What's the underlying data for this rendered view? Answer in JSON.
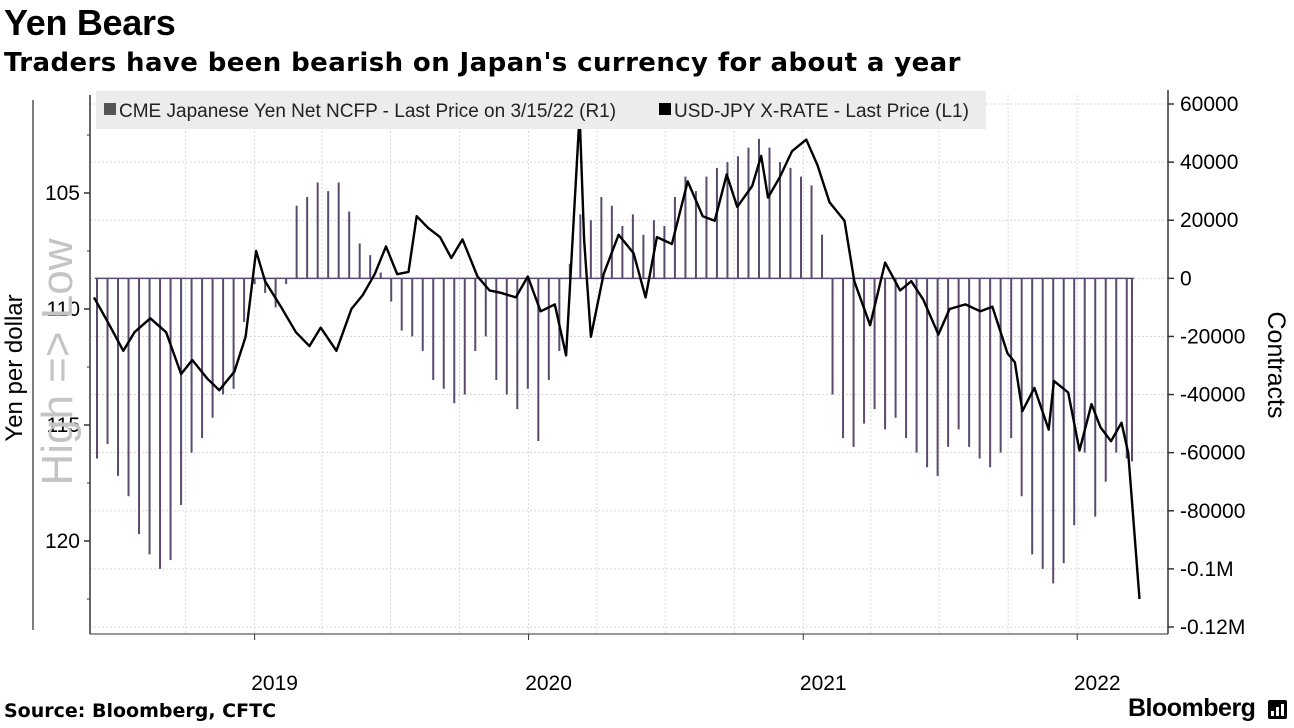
{
  "header": {
    "title": "Yen Bears",
    "subtitle": "Traders have been bearish on Japan's currency for about a year"
  },
  "footer": {
    "source": "Source: Bloomberg, CFTC",
    "brand": "Bloomberg"
  },
  "colors": {
    "line": "#000000",
    "bars": "#5b4a6e",
    "grid": "#d9d9d9",
    "legend_bg": "#ececec",
    "legend_swatch_bars": "#555555"
  },
  "chart_data": {
    "type": "bar+line",
    "title": "Yen Bears",
    "subtitle": "Traders have been bearish on Japan's currency for about a year",
    "legend": [
      {
        "name": "CME Japanese Yen Net NCFP - Last Price on 3/15/22 (R1)",
        "axis": "right"
      },
      {
        "name": "USD-JPY X-RATE - Last Price (L1)",
        "axis": "left"
      }
    ],
    "legend_position": "top",
    "left_axis": {
      "label": "Yen per dollar",
      "annotation": "High => Low",
      "ticks": [
        105,
        110,
        115,
        120
      ],
      "range": [
        101.5,
        123.5
      ],
      "inverted": true
    },
    "right_axis": {
      "label": "Contracts",
      "ticks": [
        60000,
        40000,
        20000,
        0,
        -20000,
        -40000,
        -60000,
        -80000,
        -100000,
        -120000
      ],
      "tick_labels": [
        "60000",
        "40000",
        "20000",
        "0",
        "-20000",
        "-40000",
        "-60000",
        "-80000",
        "-0.1M",
        "-0.12M"
      ],
      "range": [
        -120000,
        60000
      ]
    },
    "x_axis": {
      "range": [
        "2018-06-01",
        "2022-03-15"
      ],
      "tick_labels": [
        "2019",
        "2020",
        "2021",
        "2022"
      ],
      "ticks": [
        "2019-01-01",
        "2020-01-01",
        "2021-01-01",
        "2022-01-01"
      ]
    },
    "grid": true,
    "net_positions": [
      [
        "2018-06-05",
        -62000
      ],
      [
        "2018-06-19",
        -57000
      ],
      [
        "2018-07-03",
        -68000
      ],
      [
        "2018-07-17",
        -75000
      ],
      [
        "2018-07-31",
        -88000
      ],
      [
        "2018-08-14",
        -95000
      ],
      [
        "2018-08-28",
        -100000
      ],
      [
        "2018-09-11",
        -97000
      ],
      [
        "2018-09-25",
        -78000
      ],
      [
        "2018-10-09",
        -60000
      ],
      [
        "2018-10-23",
        -55000
      ],
      [
        "2018-11-06",
        -48000
      ],
      [
        "2018-11-20",
        -40000
      ],
      [
        "2018-12-04",
        -38000
      ],
      [
        "2018-12-18",
        -15000
      ],
      [
        "2019-01-01",
        -2000
      ],
      [
        "2019-01-15",
        -5000
      ],
      [
        "2019-01-29",
        -10000
      ],
      [
        "2019-02-12",
        -2000
      ],
      [
        "2019-02-26",
        25000
      ],
      [
        "2019-03-12",
        28000
      ],
      [
        "2019-03-26",
        33000
      ],
      [
        "2019-04-09",
        30000
      ],
      [
        "2019-04-23",
        33000
      ],
      [
        "2019-05-07",
        23000
      ],
      [
        "2019-05-21",
        12000
      ],
      [
        "2019-06-04",
        8000
      ],
      [
        "2019-06-18",
        2000
      ],
      [
        "2019-07-02",
        -8000
      ],
      [
        "2019-07-16",
        -18000
      ],
      [
        "2019-07-30",
        -20000
      ],
      [
        "2019-08-13",
        -25000
      ],
      [
        "2019-08-27",
        -35000
      ],
      [
        "2019-09-10",
        -38000
      ],
      [
        "2019-09-24",
        -43000
      ],
      [
        "2019-10-08",
        -40000
      ],
      [
        "2019-10-22",
        -25000
      ],
      [
        "2019-11-05",
        -20000
      ],
      [
        "2019-11-19",
        -35000
      ],
      [
        "2019-12-03",
        -40000
      ],
      [
        "2019-12-17",
        -45000
      ],
      [
        "2019-12-31",
        -38000
      ],
      [
        "2020-01-14",
        -56000
      ],
      [
        "2020-01-28",
        -35000
      ],
      [
        "2020-02-11",
        -25000
      ],
      [
        "2020-02-25",
        5000
      ],
      [
        "2020-03-10",
        22000
      ],
      [
        "2020-03-24",
        20000
      ],
      [
        "2020-04-07",
        28000
      ],
      [
        "2020-04-21",
        25000
      ],
      [
        "2020-05-05",
        18000
      ],
      [
        "2020-05-19",
        22000
      ],
      [
        "2020-06-02",
        15000
      ],
      [
        "2020-06-16",
        20000
      ],
      [
        "2020-06-30",
        18000
      ],
      [
        "2020-07-14",
        28000
      ],
      [
        "2020-07-28",
        35000
      ],
      [
        "2020-08-11",
        30000
      ],
      [
        "2020-08-25",
        35000
      ],
      [
        "2020-09-08",
        38000
      ],
      [
        "2020-09-22",
        40000
      ],
      [
        "2020-10-06",
        42000
      ],
      [
        "2020-10-20",
        45000
      ],
      [
        "2020-11-03",
        48000
      ],
      [
        "2020-11-17",
        45000
      ],
      [
        "2020-12-01",
        40000
      ],
      [
        "2020-12-15",
        38000
      ],
      [
        "2020-12-29",
        35000
      ],
      [
        "2021-01-12",
        32000
      ],
      [
        "2021-01-26",
        15000
      ],
      [
        "2021-02-09",
        -40000
      ],
      [
        "2021-02-23",
        -55000
      ],
      [
        "2021-03-09",
        -58000
      ],
      [
        "2021-03-23",
        -50000
      ],
      [
        "2021-04-06",
        -45000
      ],
      [
        "2021-04-20",
        -52000
      ],
      [
        "2021-05-04",
        -48000
      ],
      [
        "2021-05-18",
        -55000
      ],
      [
        "2021-06-01",
        -60000
      ],
      [
        "2021-06-15",
        -65000
      ],
      [
        "2021-06-29",
        -68000
      ],
      [
        "2021-07-13",
        -58000
      ],
      [
        "2021-07-27",
        -52000
      ],
      [
        "2021-08-10",
        -58000
      ],
      [
        "2021-08-24",
        -62000
      ],
      [
        "2021-09-07",
        -65000
      ],
      [
        "2021-09-21",
        -60000
      ],
      [
        "2021-10-05",
        -55000
      ],
      [
        "2021-10-19",
        -75000
      ],
      [
        "2021-11-02",
        -95000
      ],
      [
        "2021-11-16",
        -100000
      ],
      [
        "2021-11-30",
        -105000
      ],
      [
        "2021-12-14",
        -98000
      ],
      [
        "2021-12-28",
        -85000
      ],
      [
        "2022-01-11",
        -60000
      ],
      [
        "2022-01-25",
        -82000
      ],
      [
        "2022-02-08",
        -70000
      ],
      [
        "2022-02-22",
        -60000
      ],
      [
        "2022-03-08",
        -62000
      ],
      [
        "2022-03-15",
        -63000
      ]
    ],
    "usd_jpy": [
      [
        "2018-06-01",
        109.5
      ],
      [
        "2018-06-20",
        110.6
      ],
      [
        "2018-07-10",
        111.8
      ],
      [
        "2018-07-25",
        111.0
      ],
      [
        "2018-08-15",
        110.4
      ],
      [
        "2018-09-05",
        111.0
      ],
      [
        "2018-09-25",
        112.8
      ],
      [
        "2018-10-10",
        112.2
      ],
      [
        "2018-10-30",
        113.0
      ],
      [
        "2018-11-15",
        113.5
      ],
      [
        "2018-12-05",
        112.7
      ],
      [
        "2018-12-20",
        111.2
      ],
      [
        "2019-01-03",
        107.5
      ],
      [
        "2019-01-15",
        108.8
      ],
      [
        "2019-02-05",
        109.9
      ],
      [
        "2019-02-25",
        111.0
      ],
      [
        "2019-03-15",
        111.6
      ],
      [
        "2019-03-30",
        110.8
      ],
      [
        "2019-04-20",
        111.8
      ],
      [
        "2019-05-10",
        110.0
      ],
      [
        "2019-05-25",
        109.4
      ],
      [
        "2019-06-10",
        108.5
      ],
      [
        "2019-06-25",
        107.3
      ],
      [
        "2019-07-10",
        108.5
      ],
      [
        "2019-07-25",
        108.4
      ],
      [
        "2019-08-05",
        106.0
      ],
      [
        "2019-08-20",
        106.5
      ],
      [
        "2019-09-05",
        106.9
      ],
      [
        "2019-09-20",
        107.8
      ],
      [
        "2019-10-05",
        107.0
      ],
      [
        "2019-10-25",
        108.6
      ],
      [
        "2019-11-10",
        109.2
      ],
      [
        "2019-11-25",
        109.3
      ],
      [
        "2019-12-15",
        109.5
      ],
      [
        "2019-12-31",
        108.6
      ],
      [
        "2020-01-17",
        110.1
      ],
      [
        "2020-02-05",
        109.8
      ],
      [
        "2020-02-20",
        112.0
      ],
      [
        "2020-03-09",
        101.6
      ],
      [
        "2020-03-15",
        107.0
      ],
      [
        "2020-03-24",
        111.2
      ],
      [
        "2020-04-10",
        108.5
      ],
      [
        "2020-04-30",
        106.8
      ],
      [
        "2020-05-20",
        107.6
      ],
      [
        "2020-06-05",
        109.5
      ],
      [
        "2020-06-20",
        106.9
      ],
      [
        "2020-07-10",
        107.2
      ],
      [
        "2020-07-31",
        104.5
      ],
      [
        "2020-08-20",
        106.0
      ],
      [
        "2020-09-05",
        106.2
      ],
      [
        "2020-09-21",
        104.2
      ],
      [
        "2020-10-05",
        105.6
      ],
      [
        "2020-10-25",
        104.7
      ],
      [
        "2020-11-06",
        103.4
      ],
      [
        "2020-11-15",
        105.2
      ],
      [
        "2020-12-01",
        104.3
      ],
      [
        "2020-12-17",
        103.2
      ],
      [
        "2021-01-05",
        102.7
      ],
      [
        "2021-01-20",
        103.8
      ],
      [
        "2021-02-05",
        105.4
      ],
      [
        "2021-02-25",
        106.2
      ],
      [
        "2021-03-10",
        108.8
      ],
      [
        "2021-03-31",
        110.7
      ],
      [
        "2021-04-20",
        108.0
      ],
      [
        "2021-05-10",
        109.2
      ],
      [
        "2021-05-25",
        108.8
      ],
      [
        "2021-06-10",
        109.6
      ],
      [
        "2021-06-30",
        111.1
      ],
      [
        "2021-07-15",
        110.0
      ],
      [
        "2021-08-05",
        109.8
      ],
      [
        "2021-08-25",
        110.1
      ],
      [
        "2021-09-10",
        109.9
      ],
      [
        "2021-09-30",
        111.9
      ],
      [
        "2021-10-10",
        112.3
      ],
      [
        "2021-10-20",
        114.4
      ],
      [
        "2021-11-05",
        113.4
      ],
      [
        "2021-11-24",
        115.2
      ],
      [
        "2021-12-01",
        113.1
      ],
      [
        "2021-12-20",
        113.6
      ],
      [
        "2022-01-04",
        116.1
      ],
      [
        "2022-01-20",
        114.1
      ],
      [
        "2022-02-01",
        115.1
      ],
      [
        "2022-02-15",
        115.7
      ],
      [
        "2022-03-01",
        114.9
      ],
      [
        "2022-03-10",
        116.2
      ],
      [
        "2022-03-15",
        118.3
      ],
      [
        "2022-03-25",
        122.5
      ]
    ]
  }
}
